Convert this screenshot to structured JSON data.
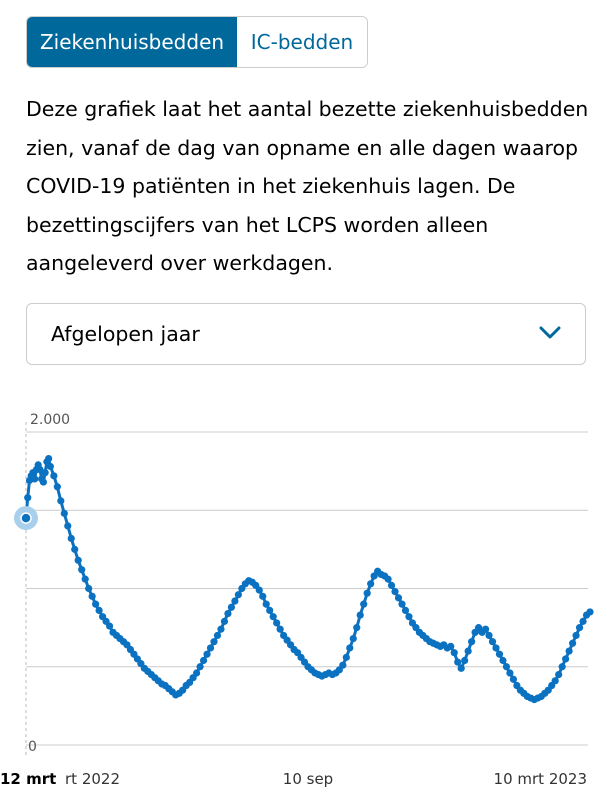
{
  "tabs": [
    {
      "label": "Ziekenhuisbedden",
      "active": true
    },
    {
      "label": "IC-bedden",
      "active": false
    }
  ],
  "description": "Deze grafiek laat het aantal bezette ziekenhuisbedden zien, vanaf de dag van opname en alle dagen waarop COVID-19 patiënten in het ziekenhuis lagen. De bezettingscijfers van het LCPS worden alleen aangeleverd over werkdagen.",
  "period_select": {
    "selected": "Afgelopen jaar",
    "icon": "chevron-down-icon"
  },
  "colors": {
    "accent": "#01689b",
    "line": "#0b71c1",
    "grid": "#cccccc",
    "highlight": "#a8d0ec"
  },
  "chart_data": {
    "type": "line",
    "title": "",
    "xlabel": "",
    "ylabel": "",
    "ylim": [
      0,
      2000
    ],
    "y_ticks": [
      "2.000",
      "0"
    ],
    "x_ticks": [
      {
        "label": "12 mrt",
        "date": "2022-03-12",
        "bold": true
      },
      {
        "label": "rt 2022",
        "date": "2022-03-20",
        "bold": false
      },
      {
        "label": "10 sep",
        "date": "2022-09-10",
        "bold": false
      },
      {
        "label": "10 mrt 2023",
        "date": "2023-03-10",
        "bold": false
      }
    ],
    "highlight_point": {
      "date": "2022-03-12",
      "value": 1450
    },
    "series": [
      {
        "points": [
          [
            "2022-03-12",
            1450
          ],
          [
            "2022-03-13",
            1580
          ],
          [
            "2022-03-14",
            1690
          ],
          [
            "2022-03-15",
            1720
          ],
          [
            "2022-03-16",
            1740
          ],
          [
            "2022-03-17",
            1700
          ],
          [
            "2022-03-18",
            1760
          ],
          [
            "2022-03-19",
            1790
          ],
          [
            "2022-03-20",
            1760
          ],
          [
            "2022-03-21",
            1700
          ],
          [
            "2022-03-22",
            1680
          ],
          [
            "2022-03-23",
            1740
          ],
          [
            "2022-03-24",
            1810
          ],
          [
            "2022-03-25",
            1830
          ],
          [
            "2022-03-26",
            1780
          ],
          [
            "2022-03-28",
            1720
          ],
          [
            "2022-03-30",
            1650
          ],
          [
            "2022-04-01",
            1560
          ],
          [
            "2022-04-03",
            1480
          ],
          [
            "2022-04-05",
            1400
          ],
          [
            "2022-04-07",
            1320
          ],
          [
            "2022-04-09",
            1250
          ],
          [
            "2022-04-11",
            1180
          ],
          [
            "2022-04-13",
            1120
          ],
          [
            "2022-04-15",
            1060
          ],
          [
            "2022-04-17",
            1000
          ],
          [
            "2022-04-19",
            950
          ],
          [
            "2022-04-21",
            900
          ],
          [
            "2022-04-23",
            860
          ],
          [
            "2022-04-25",
            820
          ],
          [
            "2022-04-27",
            790
          ],
          [
            "2022-04-29",
            760
          ],
          [
            "2022-05-01",
            720
          ],
          [
            "2022-05-03",
            700
          ],
          [
            "2022-05-05",
            680
          ],
          [
            "2022-05-07",
            660
          ],
          [
            "2022-05-09",
            640
          ],
          [
            "2022-05-11",
            610
          ],
          [
            "2022-05-13",
            580
          ],
          [
            "2022-05-15",
            550
          ],
          [
            "2022-05-17",
            520
          ],
          [
            "2022-05-19",
            490
          ],
          [
            "2022-05-21",
            470
          ],
          [
            "2022-05-23",
            450
          ],
          [
            "2022-05-25",
            430
          ],
          [
            "2022-05-27",
            410
          ],
          [
            "2022-05-29",
            390
          ],
          [
            "2022-05-31",
            380
          ],
          [
            "2022-06-02",
            360
          ],
          [
            "2022-06-04",
            340
          ],
          [
            "2022-06-06",
            320
          ],
          [
            "2022-06-08",
            330
          ],
          [
            "2022-06-10",
            350
          ],
          [
            "2022-06-12",
            380
          ],
          [
            "2022-06-14",
            400
          ],
          [
            "2022-06-16",
            430
          ],
          [
            "2022-06-18",
            460
          ],
          [
            "2022-06-20",
            500
          ],
          [
            "2022-06-22",
            540
          ],
          [
            "2022-06-24",
            580
          ],
          [
            "2022-06-26",
            620
          ],
          [
            "2022-06-28",
            660
          ],
          [
            "2022-06-30",
            700
          ],
          [
            "2022-07-02",
            740
          ],
          [
            "2022-07-04",
            790
          ],
          [
            "2022-07-06",
            840
          ],
          [
            "2022-07-08",
            880
          ],
          [
            "2022-07-10",
            920
          ],
          [
            "2022-07-12",
            960
          ],
          [
            "2022-07-14",
            1000
          ],
          [
            "2022-07-16",
            1030
          ],
          [
            "2022-07-18",
            1050
          ],
          [
            "2022-07-20",
            1040
          ],
          [
            "2022-07-22",
            1020
          ],
          [
            "2022-07-24",
            990
          ],
          [
            "2022-07-26",
            950
          ],
          [
            "2022-07-28",
            900
          ],
          [
            "2022-07-30",
            860
          ],
          [
            "2022-08-01",
            820
          ],
          [
            "2022-08-03",
            780
          ],
          [
            "2022-08-05",
            740
          ],
          [
            "2022-08-07",
            700
          ],
          [
            "2022-08-09",
            670
          ],
          [
            "2022-08-11",
            640
          ],
          [
            "2022-08-13",
            610
          ],
          [
            "2022-08-15",
            590
          ],
          [
            "2022-08-17",
            560
          ],
          [
            "2022-08-19",
            530
          ],
          [
            "2022-08-21",
            500
          ],
          [
            "2022-08-23",
            480
          ],
          [
            "2022-08-25",
            460
          ],
          [
            "2022-08-27",
            450
          ],
          [
            "2022-08-29",
            440
          ],
          [
            "2022-08-31",
            450
          ],
          [
            "2022-09-02",
            460
          ],
          [
            "2022-09-04",
            450
          ],
          [
            "2022-09-06",
            460
          ],
          [
            "2022-09-08",
            480
          ],
          [
            "2022-09-10",
            510
          ],
          [
            "2022-09-12",
            560
          ],
          [
            "2022-09-14",
            620
          ],
          [
            "2022-09-16",
            680
          ],
          [
            "2022-09-18",
            750
          ],
          [
            "2022-09-20",
            830
          ],
          [
            "2022-09-22",
            900
          ],
          [
            "2022-09-24",
            970
          ],
          [
            "2022-09-26",
            1030
          ],
          [
            "2022-09-28",
            1080
          ],
          [
            "2022-09-30",
            1110
          ],
          [
            "2022-10-02",
            1090
          ],
          [
            "2022-10-04",
            1080
          ],
          [
            "2022-10-06",
            1060
          ],
          [
            "2022-10-08",
            1020
          ],
          [
            "2022-10-10",
            980
          ],
          [
            "2022-10-12",
            940
          ],
          [
            "2022-10-14",
            900
          ],
          [
            "2022-10-16",
            860
          ],
          [
            "2022-10-18",
            820
          ],
          [
            "2022-10-20",
            780
          ],
          [
            "2022-10-22",
            750
          ],
          [
            "2022-10-24",
            720
          ],
          [
            "2022-10-26",
            700
          ],
          [
            "2022-10-28",
            680
          ],
          [
            "2022-10-30",
            660
          ],
          [
            "2022-11-01",
            650
          ],
          [
            "2022-11-03",
            640
          ],
          [
            "2022-11-05",
            630
          ],
          [
            "2022-11-07",
            640
          ],
          [
            "2022-11-09",
            620
          ],
          [
            "2022-11-11",
            630
          ],
          [
            "2022-11-13",
            590
          ],
          [
            "2022-11-15",
            530
          ],
          [
            "2022-11-17",
            490
          ],
          [
            "2022-11-19",
            540
          ],
          [
            "2022-11-21",
            600
          ],
          [
            "2022-11-23",
            660
          ],
          [
            "2022-11-25",
            720
          ],
          [
            "2022-11-27",
            750
          ],
          [
            "2022-11-29",
            720
          ],
          [
            "2022-12-01",
            740
          ],
          [
            "2022-12-03",
            700
          ],
          [
            "2022-12-05",
            660
          ],
          [
            "2022-12-07",
            620
          ],
          [
            "2022-12-09",
            580
          ],
          [
            "2022-12-11",
            540
          ],
          [
            "2022-12-13",
            500
          ],
          [
            "2022-12-15",
            460
          ],
          [
            "2022-12-17",
            420
          ],
          [
            "2022-12-19",
            380
          ],
          [
            "2022-12-21",
            350
          ],
          [
            "2022-12-23",
            330
          ],
          [
            "2022-12-25",
            310
          ],
          [
            "2022-12-27",
            300
          ],
          [
            "2022-12-29",
            290
          ],
          [
            "2022-12-31",
            300
          ],
          [
            "2023-01-02",
            310
          ],
          [
            "2023-01-04",
            330
          ],
          [
            "2023-01-06",
            350
          ],
          [
            "2023-01-08",
            380
          ],
          [
            "2023-01-10",
            410
          ],
          [
            "2023-01-12",
            450
          ],
          [
            "2023-01-14",
            500
          ],
          [
            "2023-01-16",
            550
          ],
          [
            "2023-01-18",
            600
          ],
          [
            "2023-01-20",
            650
          ],
          [
            "2023-01-22",
            700
          ],
          [
            "2023-01-24",
            750
          ],
          [
            "2023-01-26",
            790
          ],
          [
            "2023-01-28",
            830
          ],
          [
            "2023-01-30",
            850
          ]
        ]
      }
    ]
  }
}
